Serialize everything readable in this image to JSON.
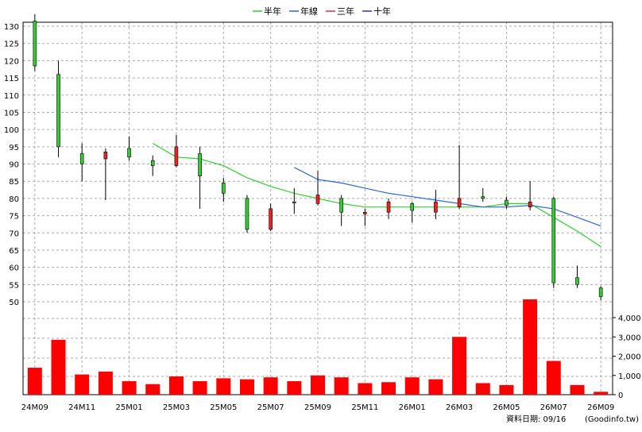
{
  "chart_data": {
    "type": "candlestick",
    "legend": [
      {
        "name": "半年",
        "color": "#33cc33"
      },
      {
        "name": "年線",
        "color": "#3366cc"
      },
      {
        "name": "三年",
        "color": "#cc3355"
      },
      {
        "name": "十年",
        "color": "#3333aa"
      }
    ],
    "price_axis": {
      "min": 50,
      "max": 130,
      "step": 5,
      "ticks": [
        "130",
        "125",
        "120",
        "115",
        "110",
        "105",
        "100",
        "95",
        "90",
        "85",
        "80",
        "75",
        "70",
        "65",
        "60",
        "55",
        "50"
      ]
    },
    "volume_axis": {
      "min": 0,
      "max": 4000,
      "ticks": [
        "4,000",
        "3,000",
        "2,000",
        "1,000",
        "0"
      ]
    },
    "x_labels": [
      "24M09",
      "24M11",
      "25M01",
      "25M03",
      "25M05",
      "25M07",
      "25M09",
      "25M11",
      "26M01",
      "26M03",
      "26M05",
      "26M07",
      "26M09"
    ],
    "months": [
      "24M09",
      "24M10",
      "24M11",
      "24M12",
      "25M01",
      "25M02",
      "25M03",
      "25M04",
      "25M05",
      "25M06",
      "25M07",
      "25M08",
      "25M09",
      "25M10",
      "25M11",
      "25M12",
      "26M01",
      "26M02",
      "26M03",
      "26M04",
      "26M05",
      "26M06",
      "26M07",
      "26M08",
      "26M09"
    ],
    "candles": [
      {
        "month": "24M09",
        "open": 118.5,
        "high": 133.5,
        "low": 117,
        "close": 131.5
      },
      {
        "month": "24M10",
        "open": 95,
        "high": 120,
        "low": 92,
        "close": 116
      },
      {
        "month": "24M11",
        "open": 90,
        "high": 96,
        "low": 85,
        "close": 93
      },
      {
        "month": "24M12",
        "open": 93.5,
        "high": 94.5,
        "low": 79.5,
        "close": 91.5
      },
      {
        "month": "25M01",
        "open": 92,
        "high": 98,
        "low": 91,
        "close": 94.5
      },
      {
        "month": "25M02",
        "open": 89.5,
        "high": 92.5,
        "low": 86.5,
        "close": 91
      },
      {
        "month": "25M03",
        "open": 95,
        "high": 98.5,
        "low": 89,
        "close": 89.5
      },
      {
        "month": "25M04",
        "open": 86.5,
        "high": 95,
        "low": 77,
        "close": 93
      },
      {
        "month": "25M05",
        "open": 81.5,
        "high": 86,
        "low": 79,
        "close": 84.5
      },
      {
        "month": "25M06",
        "open": 71,
        "high": 81,
        "low": 70,
        "close": 80
      },
      {
        "month": "25M07",
        "open": 77,
        "high": 78.5,
        "low": 70.5,
        "close": 71
      },
      {
        "month": "25M08",
        "open": 79,
        "high": 83,
        "low": 75.5,
        "close": 79
      },
      {
        "month": "25M09",
        "open": 81,
        "high": 88,
        "low": 78,
        "close": 78.5
      },
      {
        "month": "25M10",
        "open": 76,
        "high": 81,
        "low": 72,
        "close": 80
      },
      {
        "month": "25M11",
        "open": 76,
        "high": 77,
        "low": 72,
        "close": 75.5
      },
      {
        "month": "25M12",
        "open": 79,
        "high": 80,
        "low": 74,
        "close": 76
      },
      {
        "month": "26M01",
        "open": 76.5,
        "high": 79,
        "low": 73,
        "close": 78.5
      },
      {
        "month": "26M02",
        "open": 79,
        "high": 82.5,
        "low": 74,
        "close": 76
      },
      {
        "month": "26M03",
        "open": 80,
        "high": 95.5,
        "low": 77,
        "close": 77.5
      },
      {
        "month": "26M04",
        "open": 80,
        "high": 83,
        "low": 79,
        "close": 80.5
      },
      {
        "month": "26M05",
        "open": 78,
        "high": 80.5,
        "low": 77,
        "close": 79.5
      },
      {
        "month": "26M06",
        "open": 79,
        "high": 85,
        "low": 76.5,
        "close": 77.5
      },
      {
        "month": "26M07",
        "open": 55.5,
        "high": 80.5,
        "low": 54,
        "close": 80
      },
      {
        "month": "26M08",
        "open": 55,
        "high": 60.5,
        "low": 54,
        "close": 57
      },
      {
        "month": "26M09",
        "open": 51.5,
        "high": 54.5,
        "low": 50.5,
        "close": 54
      }
    ],
    "volume": [
      1400,
      2850,
      1050,
      1200,
      700,
      550,
      950,
      700,
      850,
      800,
      900,
      700,
      1000,
      900,
      600,
      650,
      900,
      800,
      3000,
      600,
      500,
      4950,
      1750,
      500,
      150
    ],
    "series": [
      {
        "name": "半年",
        "color": "#33cc33",
        "values": [
          null,
          null,
          null,
          null,
          null,
          96,
          92,
          91.5,
          89.5,
          86,
          83.5,
          81.5,
          80,
          78.5,
          77.5,
          77.5,
          77.5,
          77.5,
          77.5,
          77.5,
          78.5,
          78.5,
          74.5,
          70.5,
          66
        ]
      },
      {
        "name": "年線",
        "color": "#3366cc",
        "values": [
          null,
          null,
          null,
          null,
          null,
          null,
          null,
          null,
          null,
          null,
          null,
          89,
          85.5,
          84.5,
          83,
          81.5,
          80.5,
          79.5,
          78.5,
          77.5,
          77.5,
          78,
          77,
          74.5,
          72
        ]
      }
    ],
    "ylim_price": [
      50,
      130
    ],
    "ylim_volume": [
      0,
      4000
    ]
  },
  "footer": {
    "date_label": "資料日期: 09/16",
    "source": "(Goodinfo.tw)"
  }
}
